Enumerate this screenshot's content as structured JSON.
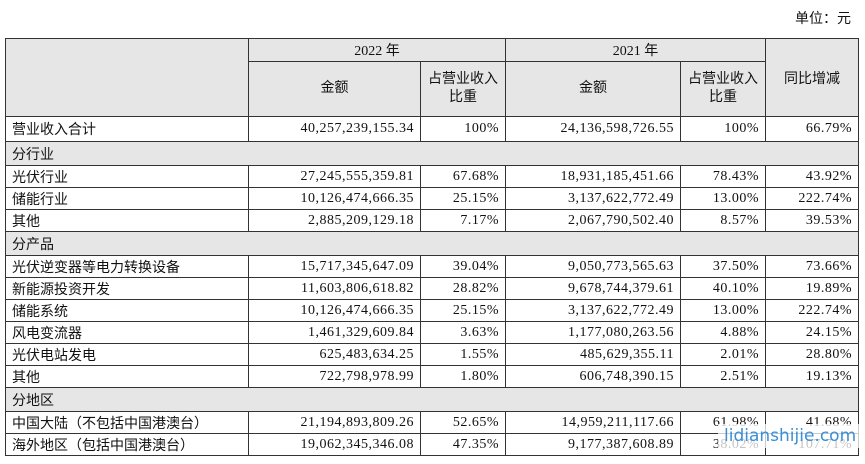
{
  "header": {
    "unit": "单位：元",
    "year_a": "2022 年",
    "year_b": "2021 年",
    "amount": "金额",
    "ratio": "占营业收入比重",
    "yoy": "同比增减"
  },
  "table": {
    "rows": [
      [
        "营业收入合计",
        "40,257,239,155.34",
        "100%",
        "24,136,598,726.55",
        "100%",
        "66.79%"
      ],
      [
        "分行业"
      ],
      [
        "光伏行业",
        "27,245,555,359.81",
        "67.68%",
        "18,931,185,451.66",
        "78.43%",
        "43.92%"
      ],
      [
        "储能行业",
        "10,126,474,666.35",
        "25.15%",
        "3,137,622,772.49",
        "13.00%",
        "222.74%"
      ],
      [
        "其他",
        "2,885,209,129.18",
        "7.17%",
        "2,067,790,502.40",
        "8.57%",
        "39.53%"
      ],
      [
        "分产品"
      ],
      [
        "光伏逆变器等电力转换设备",
        "15,717,345,647.09",
        "39.04%",
        "9,050,773,565.63",
        "37.50%",
        "73.66%"
      ],
      [
        "新能源投资开发",
        "11,603,806,618.82",
        "28.82%",
        "9,678,744,379.61",
        "40.10%",
        "19.89%"
      ],
      [
        "储能系统",
        "10,126,474,666.35",
        "25.15%",
        "3,137,622,772.49",
        "13.00%",
        "222.74%"
      ],
      [
        "风电变流器",
        "1,461,329,609.84",
        "3.63%",
        "1,177,080,263.56",
        "4.88%",
        "24.15%"
      ],
      [
        "光伏电站发电",
        "625,483,634.25",
        "1.55%",
        "485,629,355.11",
        "2.01%",
        "28.80%"
      ],
      [
        "其他",
        "722,798,978.99",
        "1.80%",
        "606,748,390.15",
        "2.51%",
        "19.13%"
      ],
      [
        "分地区"
      ],
      [
        "中国大陆（不包括中国港澳台）",
        "21,194,893,809.26",
        "52.65%",
        "14,959,211,117.66",
        "61.98%",
        "41.68%"
      ],
      [
        "海外地区（包括中国港澳台）",
        "19,062,345,346.08",
        "47.35%",
        "9,177,387,608.89",
        "38.02%",
        "107.71%"
      ]
    ]
  },
  "watermark": "lidianshijie.com"
}
